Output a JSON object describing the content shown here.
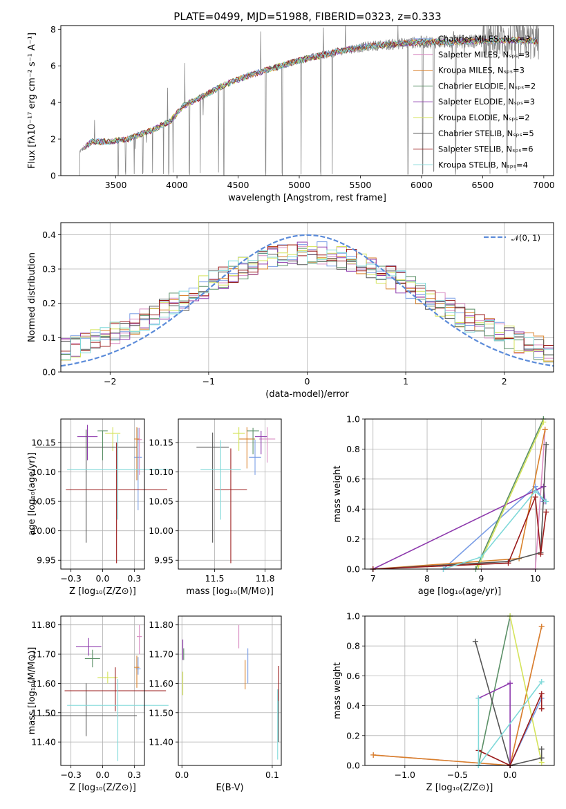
{
  "title": "PLATE=0499, MJD=51988, FIBERID=0323, z=0.333",
  "colors": {
    "series": [
      "#7a9ee6",
      "#d98cc2",
      "#d9812a",
      "#5a8f66",
      "#8e3aad",
      "#d4e35a",
      "#555555",
      "#9b1b1b",
      "#7fd9d9"
    ],
    "data_spectrum": "#888888",
    "normal_curve": "#5b8bd9",
    "grid": "#b0b0b0"
  },
  "legend": {
    "spectrum": [
      "Chabrier MILES, Nₛₚₛ=3",
      "Salpeter MILES, Nₛₚₛ=3",
      "Kroupa MILES, Nₛₚₛ=3",
      "Chabrier ELODIE, Nₛₚₛ=2",
      "Salpeter ELODIE, Nₛₚₛ=3",
      "Kroupa ELODIE, Nₛₚₛ=2",
      "Chabrier STELIB, Nₛₚₛ=5",
      "Salpeter STELIB, Nₛₚₛ=6",
      "Kroupa STELIB, Nₛₚₛ=4"
    ],
    "histogram": "𝒩(0, 1)"
  },
  "chart_data": [
    {
      "type": "line",
      "id": "spectrum",
      "xlabel": "wavelength [Angstrom, rest frame]",
      "ylabel": "Flux [fλ10⁻¹⁷ erg cm⁻² s⁻¹ A⁻¹]",
      "xlim": [
        3050,
        7080
      ],
      "ylim": [
        0,
        8.2
      ],
      "xticks": [
        3500,
        4000,
        4500,
        5000,
        5500,
        6000,
        6500,
        7000
      ],
      "yticks": [
        0,
        2,
        4,
        6,
        8
      ],
      "continuum": {
        "x": [
          3200,
          3300,
          3450,
          3600,
          3800,
          3950,
          4050,
          4200,
          4400,
          4600,
          4800,
          5000,
          5200,
          5400,
          5600,
          5800,
          6000,
          6200,
          6400,
          6600,
          6800,
          6950
        ],
        "y": [
          1.3,
          1.85,
          1.85,
          2.0,
          2.5,
          3.0,
          3.8,
          4.3,
          5.0,
          5.5,
          5.9,
          6.3,
          6.6,
          6.9,
          7.1,
          7.2,
          7.3,
          7.3,
          7.35,
          7.4,
          7.4,
          7.35
        ]
      },
      "grid": false
    },
    {
      "type": "area",
      "id": "residual-histogram",
      "xlabel": "(data-model)/error",
      "ylabel": "Normed distribution",
      "xlim": [
        -2.5,
        2.5
      ],
      "ylim": [
        0,
        0.435
      ],
      "xticks": [
        -2,
        -1,
        0,
        1,
        2
      ],
      "yticks": [
        0.0,
        0.1,
        0.2,
        0.3,
        0.4
      ],
      "bin_width": 0.1,
      "normal": {
        "mean": 0,
        "sigma": 1
      },
      "grid": true
    },
    {
      "type": "scatter",
      "id": "age-vs-z",
      "xlabel": "Z [log₁₀(Z/Z⊙)]",
      "ylabel": "age  [log₁₀(age/yr)]",
      "xlim": [
        -0.33,
        0.33
      ],
      "ylim": [
        9.935,
        10.19
      ],
      "xticks": [
        -0.25,
        0.0,
        0.25
      ],
      "yticks": [
        9.95,
        10.0,
        10.05,
        10.1,
        10.15
      ],
      "grid": true,
      "points": [
        {
          "s": 0,
          "x": 0.28,
          "y": 10.125,
          "xerr": 0.03,
          "yerr": [
            0.09,
            0.05
          ]
        },
        {
          "s": 1,
          "x": 0.29,
          "y": 10.155,
          "xerr": 0.02,
          "yerr": [
            0.06,
            0.02
          ]
        },
        {
          "s": 2,
          "x": 0.27,
          "y": 10.156,
          "xerr": 0.02,
          "yerr": [
            0.07,
            0.02
          ]
        },
        {
          "s": 3,
          "x": 0.0,
          "y": 10.17,
          "xerr": 0.04,
          "yerr": [
            0.05,
            0.0
          ]
        },
        {
          "s": 4,
          "x": -0.12,
          "y": 10.16,
          "xerr": 0.08,
          "yerr": [
            0.04,
            0.02
          ]
        },
        {
          "s": 5,
          "x": 0.08,
          "y": 10.166,
          "xerr": 0.06,
          "yerr": [
            0.03,
            0.01
          ]
        },
        {
          "s": 6,
          "x": -0.13,
          "y": 10.142,
          "xerr": 0.4,
          "yerr": [
            0.162,
            0.03
          ]
        },
        {
          "s": 7,
          "x": 0.11,
          "y": 10.07,
          "xerr": 0.4,
          "yerr": [
            0.125,
            0.08
          ]
        },
        {
          "s": 8,
          "x": 0.12,
          "y": 10.104,
          "xerr": 0.4,
          "yerr": [
            0.085,
            0.06
          ]
        }
      ]
    },
    {
      "type": "scatter",
      "id": "age-vs-mass",
      "xlabel": "mass [log₁₀(M/M⊙)]",
      "ylabel": "",
      "xlim": [
        11.32,
        11.83
      ],
      "ylim": [
        9.935,
        10.19
      ],
      "xticks": [
        11.5,
        11.75
      ],
      "yticks": [
        9.95,
        10.0,
        10.05,
        10.1,
        10.15
      ],
      "grid": true,
      "points": [
        {
          "s": 0,
          "x": 11.7,
          "y": 10.125,
          "xerr": 0.03,
          "yerr": [
            0.03,
            0.03
          ]
        },
        {
          "s": 1,
          "x": 11.76,
          "y": 10.156,
          "xerr": 0.04,
          "yerr": [
            0.04,
            0.02
          ]
        },
        {
          "s": 2,
          "x": 11.66,
          "y": 10.156,
          "xerr": 0.04,
          "yerr": [
            0.05,
            0.02
          ]
        },
        {
          "s": 3,
          "x": 11.69,
          "y": 10.17,
          "xerr": 0.03,
          "yerr": [
            0.04,
            0.005
          ]
        },
        {
          "s": 4,
          "x": 11.73,
          "y": 10.16,
          "xerr": 0.03,
          "yerr": [
            0.03,
            0.01
          ]
        },
        {
          "s": 5,
          "x": 11.62,
          "y": 10.166,
          "xerr": 0.03,
          "yerr": [
            0.03,
            0.01
          ]
        },
        {
          "s": 6,
          "x": 11.49,
          "y": 10.142,
          "xerr": 0.08,
          "yerr": [
            0.162,
            0.025
          ]
        },
        {
          "s": 7,
          "x": 11.58,
          "y": 10.07,
          "xerr": 0.08,
          "yerr": [
            0.125,
            0.07
          ]
        },
        {
          "s": 8,
          "x": 11.53,
          "y": 10.104,
          "xerr": 0.1,
          "yerr": [
            0.085,
            0.05
          ]
        }
      ]
    },
    {
      "type": "line",
      "id": "mass-weight-vs-age",
      "xlabel": "age  [log₁₀(age/yr)]",
      "ylabel": "mass weight",
      "xlim": [
        6.85,
        10.35
      ],
      "ylim": [
        0,
        1
      ],
      "xticks": [
        7,
        8,
        9,
        10
      ],
      "yticks": [
        0.0,
        0.2,
        0.4,
        0.6,
        0.8,
        1.0
      ],
      "grid": true,
      "series": [
        {
          "s": 0,
          "x": [
            8.3,
            10.0,
            10.15
          ],
          "y": [
            0.0,
            0.55,
            0.45
          ]
        },
        {
          "s": 1,
          "x": [
            8.3,
            10.0,
            10.18
          ],
          "y": [
            0.0,
            0.0,
            0.93
          ]
        },
        {
          "s": 2,
          "x": [
            7.0,
            9.7,
            10.18
          ],
          "y": [
            0.0,
            0.07,
            0.93
          ]
        },
        {
          "s": 3,
          "x": [
            8.9,
            10.15
          ],
          "y": [
            0.0,
            1.0
          ]
        },
        {
          "s": 4,
          "x": [
            7.0,
            10.15,
            10.18
          ],
          "y": [
            0.0,
            0.55,
            0.45
          ]
        },
        {
          "s": 5,
          "x": [
            8.95,
            10.15
          ],
          "y": [
            0.02,
            0.98
          ]
        },
        {
          "s": 6,
          "x": [
            7.0,
            9.5,
            10.1,
            10.2
          ],
          "y": [
            0.0,
            0.05,
            0.11,
            0.83
          ]
        },
        {
          "s": 7,
          "x": [
            7.0,
            9.5,
            10.0,
            10.1,
            10.2
          ],
          "y": [
            0.0,
            0.04,
            0.48,
            0.1,
            0.38
          ]
        },
        {
          "s": 8,
          "x": [
            8.3,
            9.0,
            10.0,
            10.2
          ],
          "y": [
            0.0,
            0.08,
            0.52,
            0.45
          ]
        }
      ]
    },
    {
      "type": "scatter",
      "id": "mass-vs-z",
      "xlabel": "Z [log₁₀(Z/Z⊙)]",
      "ylabel": "mass [log₁₀(M/M⊙)]",
      "xlim": [
        -0.33,
        0.33
      ],
      "ylim": [
        11.32,
        11.83
      ],
      "xticks": [
        -0.25,
        0.0,
        0.25
      ],
      "yticks": [
        11.4,
        11.5,
        11.6,
        11.7,
        11.8
      ],
      "grid": true,
      "points": [
        {
          "s": 0,
          "x": 0.28,
          "y": 11.65,
          "xerr": 0.02,
          "yerr": [
            0.02,
            0.04
          ]
        },
        {
          "s": 1,
          "x": 0.29,
          "y": 11.76,
          "xerr": 0.02,
          "yerr": [
            0.06,
            0.04
          ]
        },
        {
          "s": 2,
          "x": 0.27,
          "y": 11.655,
          "xerr": 0.02,
          "yerr": [
            0.07,
            0.04
          ]
        },
        {
          "s": 3,
          "x": -0.08,
          "y": 11.685,
          "xerr": 0.06,
          "yerr": [
            0.03,
            0.03
          ]
        },
        {
          "s": 4,
          "x": -0.11,
          "y": 11.725,
          "xerr": 0.1,
          "yerr": [
            0.03,
            0.03
          ]
        },
        {
          "s": 5,
          "x": 0.04,
          "y": 11.62,
          "xerr": 0.08,
          "yerr": [
            0.02,
            0.02
          ]
        },
        {
          "s": 6,
          "x": -0.13,
          "y": 11.49,
          "xerr": 0.4,
          "yerr": [
            0.07,
            0.11
          ]
        },
        {
          "s": 7,
          "x": 0.1,
          "y": 11.575,
          "xerr": 0.4,
          "yerr": [
            0.07,
            0.08
          ]
        },
        {
          "s": 8,
          "x": 0.12,
          "y": 11.525,
          "xerr": 0.4,
          "yerr": [
            0.19,
            0.09
          ]
        }
      ]
    },
    {
      "type": "scatter",
      "id": "mass-vs-ebv",
      "xlabel": "E(B-V)",
      "ylabel": "",
      "xlim": [
        -0.004,
        0.11
      ],
      "ylim": [
        11.32,
        11.83
      ],
      "xticks": [
        0.0,
        0.1
      ],
      "yticks": [
        11.4,
        11.5,
        11.6,
        11.7,
        11.8
      ],
      "grid": true,
      "points": [
        {
          "s": 0,
          "x": 0.073,
          "y": 11.66,
          "xerr": 0.0,
          "yerr": [
            0.06,
            0.06
          ]
        },
        {
          "s": 1,
          "x": 0.063,
          "y": 11.76,
          "xerr": 0.0,
          "yerr": [
            0.04,
            0.04
          ]
        },
        {
          "s": 2,
          "x": 0.07,
          "y": 11.63,
          "xerr": 0.0,
          "yerr": [
            0.05,
            0.05
          ]
        },
        {
          "s": 3,
          "x": 0.002,
          "y": 11.7,
          "xerr": 0.0,
          "yerr": [
            0.02,
            0.02
          ]
        },
        {
          "s": 4,
          "x": 0.001,
          "y": 11.72,
          "xerr": 0.0,
          "yerr": [
            0.04,
            0.03
          ]
        },
        {
          "s": 5,
          "x": 0.001,
          "y": 11.6,
          "xerr": 0.0,
          "yerr": [
            0.04,
            0.04
          ]
        },
        {
          "s": 6,
          "x": 0.107,
          "y": 11.49,
          "xerr": 0.0,
          "yerr": [
            0.09,
            0.09
          ]
        },
        {
          "s": 7,
          "x": 0.107,
          "y": 11.6,
          "xerr": 0.0,
          "yerr": [
            0.06,
            0.06
          ]
        },
        {
          "s": 8,
          "x": 0.106,
          "y": 11.46,
          "xerr": 0.0,
          "yerr": [
            0.12,
            0.12
          ]
        }
      ]
    },
    {
      "type": "line",
      "id": "mass-weight-vs-z",
      "xlabel": "Z [log₁₀(Z/Z⊙)]",
      "ylabel": "mass weight",
      "xlim": [
        -1.38,
        0.42
      ],
      "ylim": [
        0,
        1
      ],
      "xticks": [
        -1.0,
        -0.5,
        0.0
      ],
      "yticks": [
        0.0,
        0.2,
        0.4,
        0.6,
        0.8,
        1.0
      ],
      "grid": true,
      "series": [
        {
          "s": 0,
          "x": [
            -0.3,
            0.0,
            0.3
          ],
          "y": [
            0.0,
            0.0,
            0.45
          ]
        },
        {
          "s": 1,
          "x": [
            -1.3,
            0.0,
            0.3
          ],
          "y": [
            0.07,
            0.0,
            0.93
          ]
        },
        {
          "s": 2,
          "x": [
            -1.3,
            0.0,
            0.3
          ],
          "y": [
            0.07,
            0.0,
            0.93
          ]
        },
        {
          "s": 3,
          "x": [
            -0.3,
            0.0
          ],
          "y": [
            0.0,
            1.0
          ]
        },
        {
          "s": 4,
          "x": [
            -0.3,
            0.0,
            0.0
          ],
          "y": [
            0.45,
            0.55,
            0.0
          ]
        },
        {
          "s": 5,
          "x": [
            0.0,
            0.3
          ],
          "y": [
            1.0,
            0.02
          ]
        },
        {
          "s": 6,
          "x": [
            -0.33,
            0.0,
            0.3,
            0.3
          ],
          "y": [
            0.83,
            0.0,
            0.05,
            0.11
          ]
        },
        {
          "s": 7,
          "x": [
            -0.3,
            0.0,
            0.3,
            0.3
          ],
          "y": [
            0.1,
            0.0,
            0.48,
            0.38
          ]
        },
        {
          "s": 8,
          "x": [
            -0.3,
            -0.3,
            0.3
          ],
          "y": [
            0.45,
            0.0,
            0.56
          ]
        }
      ]
    }
  ]
}
